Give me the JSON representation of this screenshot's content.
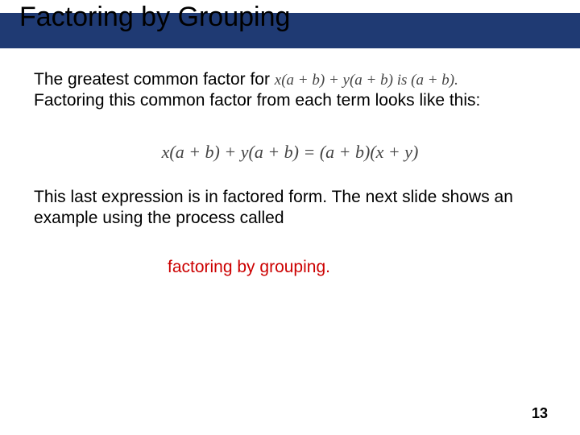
{
  "colors": {
    "title_bar": "#1f3a73",
    "background": "#ffffff",
    "title_text": "#000000",
    "body_text": "#000000",
    "math_text": "#444444",
    "keyword_text": "#cc0000"
  },
  "typography": {
    "title_fontsize": 34,
    "body_fontsize": 21,
    "math_fontsize": 22,
    "pagenum_fontsize": 18
  },
  "title": "Factoring by Grouping",
  "para1_prefix": "The greatest common factor for ",
  "para1_math_expr": "x(a + b) + y(a + b)",
  "para1_math_is": " is ",
  "para1_math_result": "(a + b).",
  "para1_line2": "Factoring this common factor from each term looks like this:",
  "display_math": "x(a + b) + y(a + b) = (a + b)(x + y)",
  "para2": "This last expression is in factored form. The next slide shows an example using the process called",
  "keyword": "factoring by grouping.",
  "page_number": "13"
}
